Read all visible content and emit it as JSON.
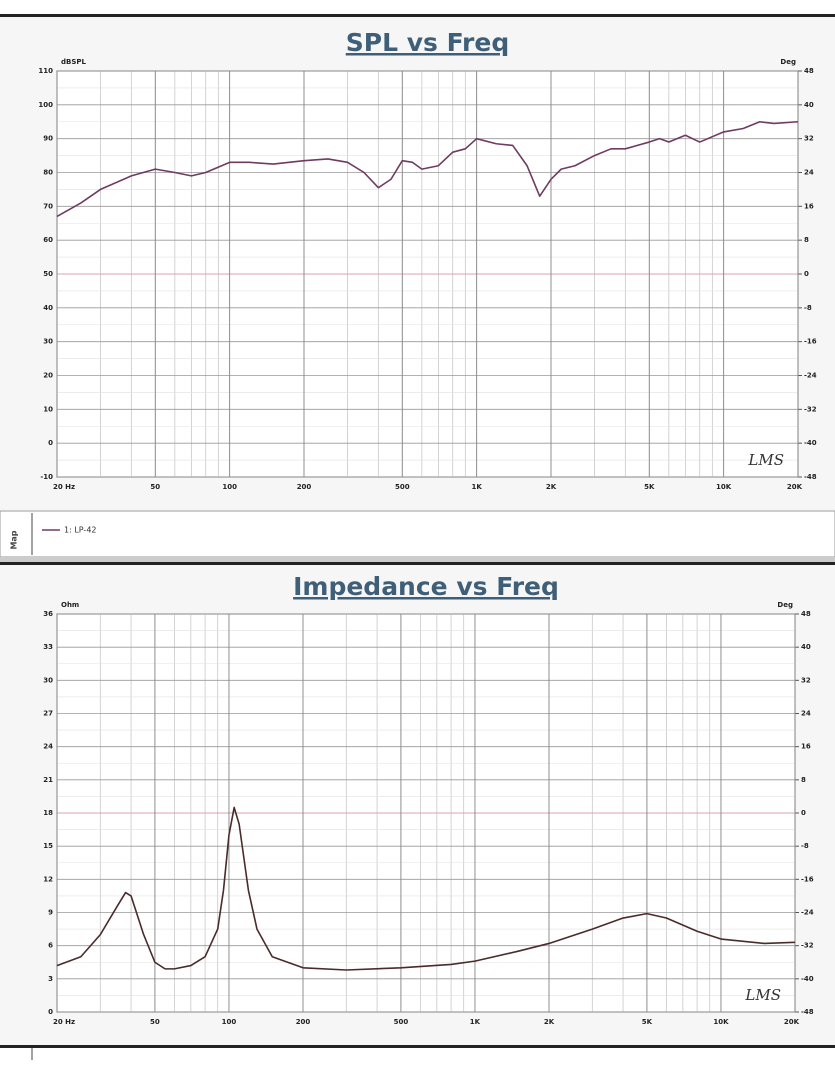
{
  "side_label": "Map",
  "chart_data": [
    {
      "type": "line",
      "title": "SPL vs Freq",
      "ylabel": "dBSPL",
      "y2label": "Deg",
      "watermark": "LMS",
      "log_x": true,
      "grid": true,
      "legend": "bottom",
      "xlim": [
        20,
        20000
      ],
      "xticks": [
        {
          "value": 20,
          "label": "20 Hz"
        },
        50,
        100,
        200,
        500,
        {
          "value": 1000,
          "label": "1K"
        },
        {
          "value": 2000,
          "label": "2K"
        },
        {
          "value": 5000,
          "label": "5K"
        },
        {
          "value": 10000,
          "label": "10K"
        },
        {
          "value": 20000,
          "label": "20K"
        }
      ],
      "ylim": [
        -10,
        110
      ],
      "yticks": [
        -10,
        0,
        10,
        20,
        30,
        40,
        50,
        60,
        70,
        80,
        90,
        100,
        110
      ],
      "y2lim": [
        -48,
        48
      ],
      "y2ticks": [
        -48,
        -40,
        -32,
        -24,
        -16,
        -8,
        0,
        8,
        16,
        24,
        32,
        40,
        48
      ],
      "x": [
        20,
        25,
        30,
        40,
        50,
        60,
        70,
        80,
        100,
        120,
        150,
        200,
        250,
        300,
        350,
        400,
        450,
        500,
        550,
        600,
        700,
        800,
        900,
        1000,
        1200,
        1400,
        1600,
        1800,
        2000,
        2200,
        2500,
        3000,
        3500,
        4000,
        5000,
        5500,
        6000,
        7000,
        8000,
        10000,
        12000,
        14000,
        16000,
        20000
      ],
      "series": [
        {
          "name": "1: LP-42",
          "color": "#6e3b63",
          "values": [
            67,
            71,
            75,
            79,
            81,
            80,
            79,
            80,
            83,
            83,
            82.5,
            83.5,
            84,
            83,
            80,
            75.5,
            78,
            83.5,
            83,
            81,
            82,
            86,
            87,
            90,
            88.5,
            88,
            82,
            73,
            78,
            81,
            82,
            85,
            87,
            87,
            89,
            90,
            89,
            91,
            89,
            92,
            93,
            95,
            94.5,
            95
          ]
        }
      ]
    },
    {
      "type": "line",
      "title": "Impedance vs Freq",
      "ylabel": "Ohm",
      "y2label": "Deg",
      "watermark": "LMS",
      "log_x": true,
      "grid": true,
      "xlim": [
        20,
        20000
      ],
      "xticks": [
        {
          "value": 20,
          "label": "20 Hz"
        },
        50,
        100,
        200,
        500,
        {
          "value": 1000,
          "label": "1K"
        },
        {
          "value": 2000,
          "label": "2K"
        },
        {
          "value": 5000,
          "label": "5K"
        },
        {
          "value": 10000,
          "label": "10K"
        },
        {
          "value": 20000,
          "label": "20K"
        }
      ],
      "ylim": [
        0,
        36
      ],
      "yticks": [
        0,
        3,
        6,
        9,
        12,
        15,
        18,
        21,
        24,
        27,
        30,
        33,
        36
      ],
      "y2lim": [
        -48,
        48
      ],
      "y2ticks": [
        -48,
        -40,
        -32,
        -24,
        -16,
        -8,
        0,
        8,
        16,
        24,
        32,
        40,
        48
      ],
      "x": [
        20,
        25,
        30,
        35,
        38,
        40,
        45,
        50,
        55,
        60,
        70,
        80,
        90,
        95,
        100,
        105,
        110,
        120,
        130,
        150,
        200,
        300,
        500,
        800,
        1000,
        1500,
        2000,
        3000,
        4000,
        5000,
        6000,
        8000,
        10000,
        15000,
        20000
      ],
      "series": [
        {
          "color": "#4a2b2b",
          "values": [
            4.2,
            5,
            7,
            9.5,
            10.8,
            10.5,
            7,
            4.5,
            3.9,
            3.9,
            4.2,
            5,
            7.5,
            11,
            16,
            18.5,
            17,
            11,
            7.5,
            5,
            4,
            3.8,
            4,
            4.3,
            4.6,
            5.5,
            6.2,
            7.5,
            8.5,
            8.9,
            8.5,
            7.3,
            6.6,
            6.2,
            6.3
          ]
        }
      ]
    }
  ]
}
